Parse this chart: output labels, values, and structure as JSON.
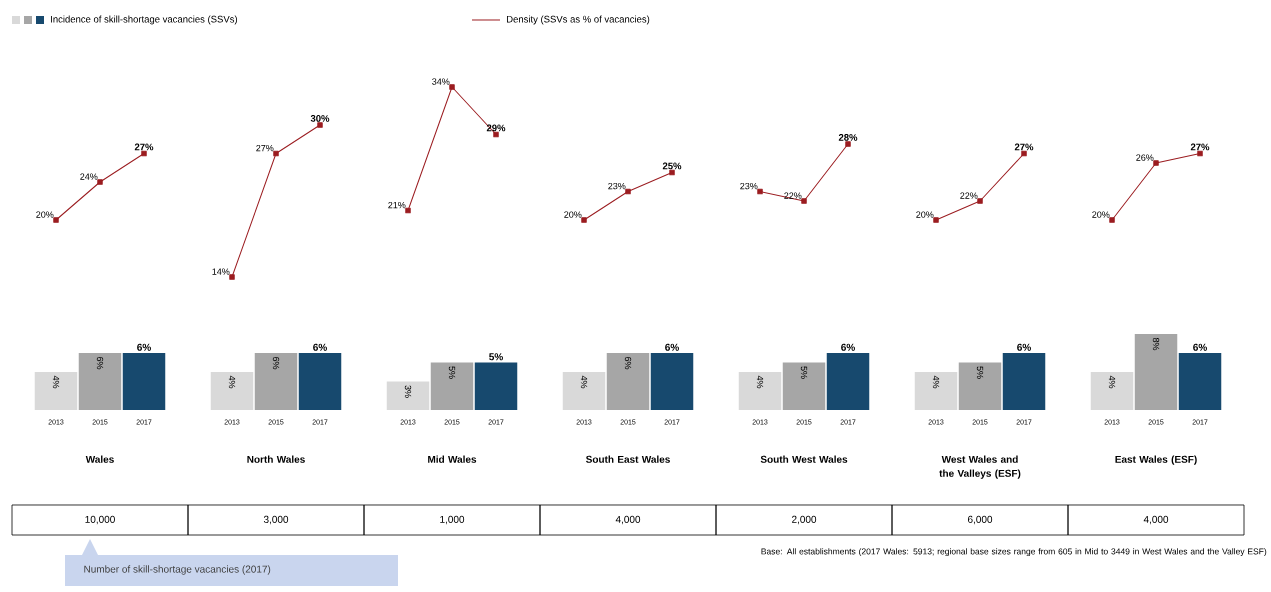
{
  "chart_data": [
    {
      "type": "bar",
      "categories": [
        "2013",
        "2015",
        "2017"
      ],
      "xlabel": "Wales",
      "legend": "top",
      "marker": "square",
      "tick_labels": "x",
      "series": [
        {
          "name": "Incidence of skill-shortage vacancies (SSVs)",
          "colors": [
            "#d9d9d9",
            "#a6a6a6",
            "#17496e"
          ],
          "values": [
            4,
            6,
            6
          ],
          "value_labels": [
            "4%",
            "6%",
            "6%"
          ]
        },
        {
          "type": "line",
          "name": "Density (SSVs as % of vacancies)",
          "color": "#9b1c20",
          "values": [
            20,
            24,
            27
          ],
          "value_labels": [
            "20%",
            "24%",
            "27%"
          ]
        }
      ],
      "annotations": [
        "10,000",
        "Number of skill-shortage vacancies (2017)"
      ]
    },
    {
      "type": "bar",
      "categories": [
        "2013",
        "2015",
        "2017"
      ],
      "xlabel": "North Wales",
      "marker": "square",
      "tick_labels": "x",
      "series": [
        {
          "colors": [
            "#d9d9d9",
            "#a6a6a6",
            "#17496e"
          ],
          "values": [
            4,
            6,
            6
          ],
          "value_labels": [
            "4%",
            "6%",
            "6%"
          ]
        },
        {
          "type": "line",
          "color": "#9b1c20",
          "values": [
            14,
            27,
            30
          ],
          "value_labels": [
            "14%",
            "27%",
            "30%"
          ]
        }
      ],
      "annotations": [
        "3,000"
      ]
    },
    {
      "type": "bar",
      "categories": [
        "2013",
        "2015",
        "2017"
      ],
      "xlabel": "Mid Wales",
      "marker": "square",
      "tick_labels": "x",
      "series": [
        {
          "colors": [
            "#d9d9d9",
            "#a6a6a6",
            "#17496e"
          ],
          "values": [
            3,
            5,
            5
          ],
          "value_labels": [
            "3%",
            "5%",
            "5%"
          ]
        },
        {
          "type": "line",
          "color": "#9b1c20",
          "values": [
            21,
            34,
            29
          ],
          "value_labels": [
            "21%",
            "34%",
            "29%"
          ]
        }
      ],
      "annotations": [
        "1,000"
      ]
    },
    {
      "type": "bar",
      "categories": [
        "2013",
        "2015",
        "2017"
      ],
      "xlabel": "South East Wales",
      "marker": "square",
      "tick_labels": "x",
      "series": [
        {
          "colors": [
            "#d9d9d9",
            "#a6a6a6",
            "#17496e"
          ],
          "values": [
            4,
            6,
            6
          ],
          "value_labels": [
            "4%",
            "6%",
            "6%"
          ]
        },
        {
          "type": "line",
          "color": "#9b1c20",
          "values": [
            20,
            23,
            25
          ],
          "value_labels": [
            "20%",
            "23%",
            "25%"
          ]
        }
      ],
      "annotations": [
        "4,000"
      ]
    },
    {
      "type": "bar",
      "categories": [
        "2013",
        "2015",
        "2017"
      ],
      "xlabel": "South West Wales",
      "marker": "square",
      "tick_labels": "x",
      "series": [
        {
          "colors": [
            "#d9d9d9",
            "#a6a6a6",
            "#17496e"
          ],
          "values": [
            4,
            5,
            6
          ],
          "value_labels": [
            "4%",
            "5%",
            "6%"
          ]
        },
        {
          "type": "line",
          "color": "#9b1c20",
          "values": [
            23,
            22,
            28
          ],
          "value_labels": [
            "23%",
            "22%",
            "28%"
          ]
        }
      ],
      "annotations": [
        "2,000"
      ]
    },
    {
      "type": "bar",
      "categories": [
        "2013",
        "2015",
        "2017"
      ],
      "xlabel": "West Wales and the Valleys (ESF)",
      "marker": "square",
      "tick_labels": "x",
      "series": [
        {
          "colors": [
            "#d9d9d9",
            "#a6a6a6",
            "#17496e"
          ],
          "values": [
            4,
            5,
            6
          ],
          "value_labels": [
            "4%",
            "5%",
            "6%"
          ]
        },
        {
          "type": "line",
          "color": "#9b1c20",
          "values": [
            20,
            22,
            27
          ],
          "value_labels": [
            "20%",
            "22%",
            "27%"
          ]
        }
      ],
      "annotations": [
        "6,000"
      ]
    },
    {
      "type": "bar",
      "categories": [
        "2013",
        "2015",
        "2017"
      ],
      "xlabel": "East Wales (ESF)",
      "marker": "square",
      "tick_labels": "x",
      "series": [
        {
          "colors": [
            "#d9d9d9",
            "#a6a6a6",
            "#17496e"
          ],
          "values": [
            4,
            8,
            6
          ],
          "value_labels": [
            "4%",
            "8%",
            "6%"
          ]
        },
        {
          "type": "line",
          "color": "#9b1c20",
          "values": [
            20,
            26,
            27
          ],
          "value_labels": [
            "20%",
            "26%",
            "27%"
          ]
        }
      ],
      "annotations": [
        "4,000",
        "Base: All establishments (2017 Wales: 5913; regional base sizes range from 605 in Mid to 3449 in West Wales and the Valley ESF)"
      ]
    }
  ]
}
